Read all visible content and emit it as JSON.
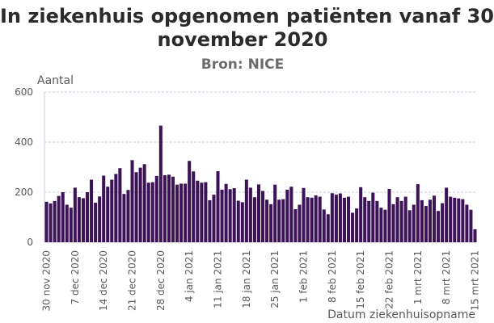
{
  "chart_data": {
    "type": "bar",
    "title": "In ziekenhuis opgenomen patiënten vanaf 30 november 2020",
    "title_line1": "In ziekenhuis opgenomen patiënten vanaf 30",
    "title_line2": "november 2020",
    "subtitle": "Bron: NICE",
    "ylabel": "Aantal",
    "xlabel": "Datum ziekenhuisopname",
    "ylim": [
      0,
      600
    ],
    "yticks": [
      0,
      200,
      400,
      600
    ],
    "grid": true,
    "bar_color": "#3d1358",
    "grid_color": "#c8cce6",
    "x_tick_labels": [
      {
        "label": "30 nov 2020",
        "index": 0
      },
      {
        "label": "7 dec 2020",
        "index": 7
      },
      {
        "label": "14 dec 2020",
        "index": 14
      },
      {
        "label": "21 dec 2020",
        "index": 21
      },
      {
        "label": "28 dec 2020",
        "index": 28
      },
      {
        "label": "4 jan 2021",
        "index": 35
      },
      {
        "label": "11 jan 2021",
        "index": 42
      },
      {
        "label": "18 jan 2021",
        "index": 49
      },
      {
        "label": "25 jan 2021",
        "index": 56
      },
      {
        "label": "1 feb 2021",
        "index": 63
      },
      {
        "label": "8 feb 2021",
        "index": 70
      },
      {
        "label": "15 feb 2021",
        "index": 77
      },
      {
        "label": "22 feb 2021",
        "index": 84
      },
      {
        "label": "1 mrt 2021",
        "index": 91
      },
      {
        "label": "8 mrt 2021",
        "index": 98
      },
      {
        "label": "15 mrt 2021",
        "index": 105
      }
    ],
    "start_date": "30 nov 2020",
    "values": [
      162,
      155,
      165,
      185,
      200,
      150,
      138,
      218,
      180,
      176,
      200,
      250,
      158,
      183,
      266,
      222,
      250,
      273,
      296,
      193,
      209,
      328,
      280,
      298,
      312,
      238,
      240,
      265,
      466,
      268,
      270,
      262,
      230,
      234,
      234,
      325,
      283,
      246,
      238,
      240,
      168,
      190,
      284,
      210,
      233,
      212,
      216,
      166,
      160,
      250,
      218,
      180,
      231,
      205,
      170,
      152,
      230,
      170,
      172,
      210,
      222,
      132,
      150,
      217,
      180,
      178,
      187,
      182,
      131,
      112,
      196,
      190,
      195,
      178,
      182,
      118,
      135,
      220,
      180,
      165,
      198,
      165,
      138,
      130,
      213,
      152,
      180,
      165,
      182,
      128,
      150,
      232,
      168,
      145,
      170,
      186,
      125,
      156,
      218,
      182,
      178,
      175,
      172,
      150,
      130,
      52
    ]
  }
}
